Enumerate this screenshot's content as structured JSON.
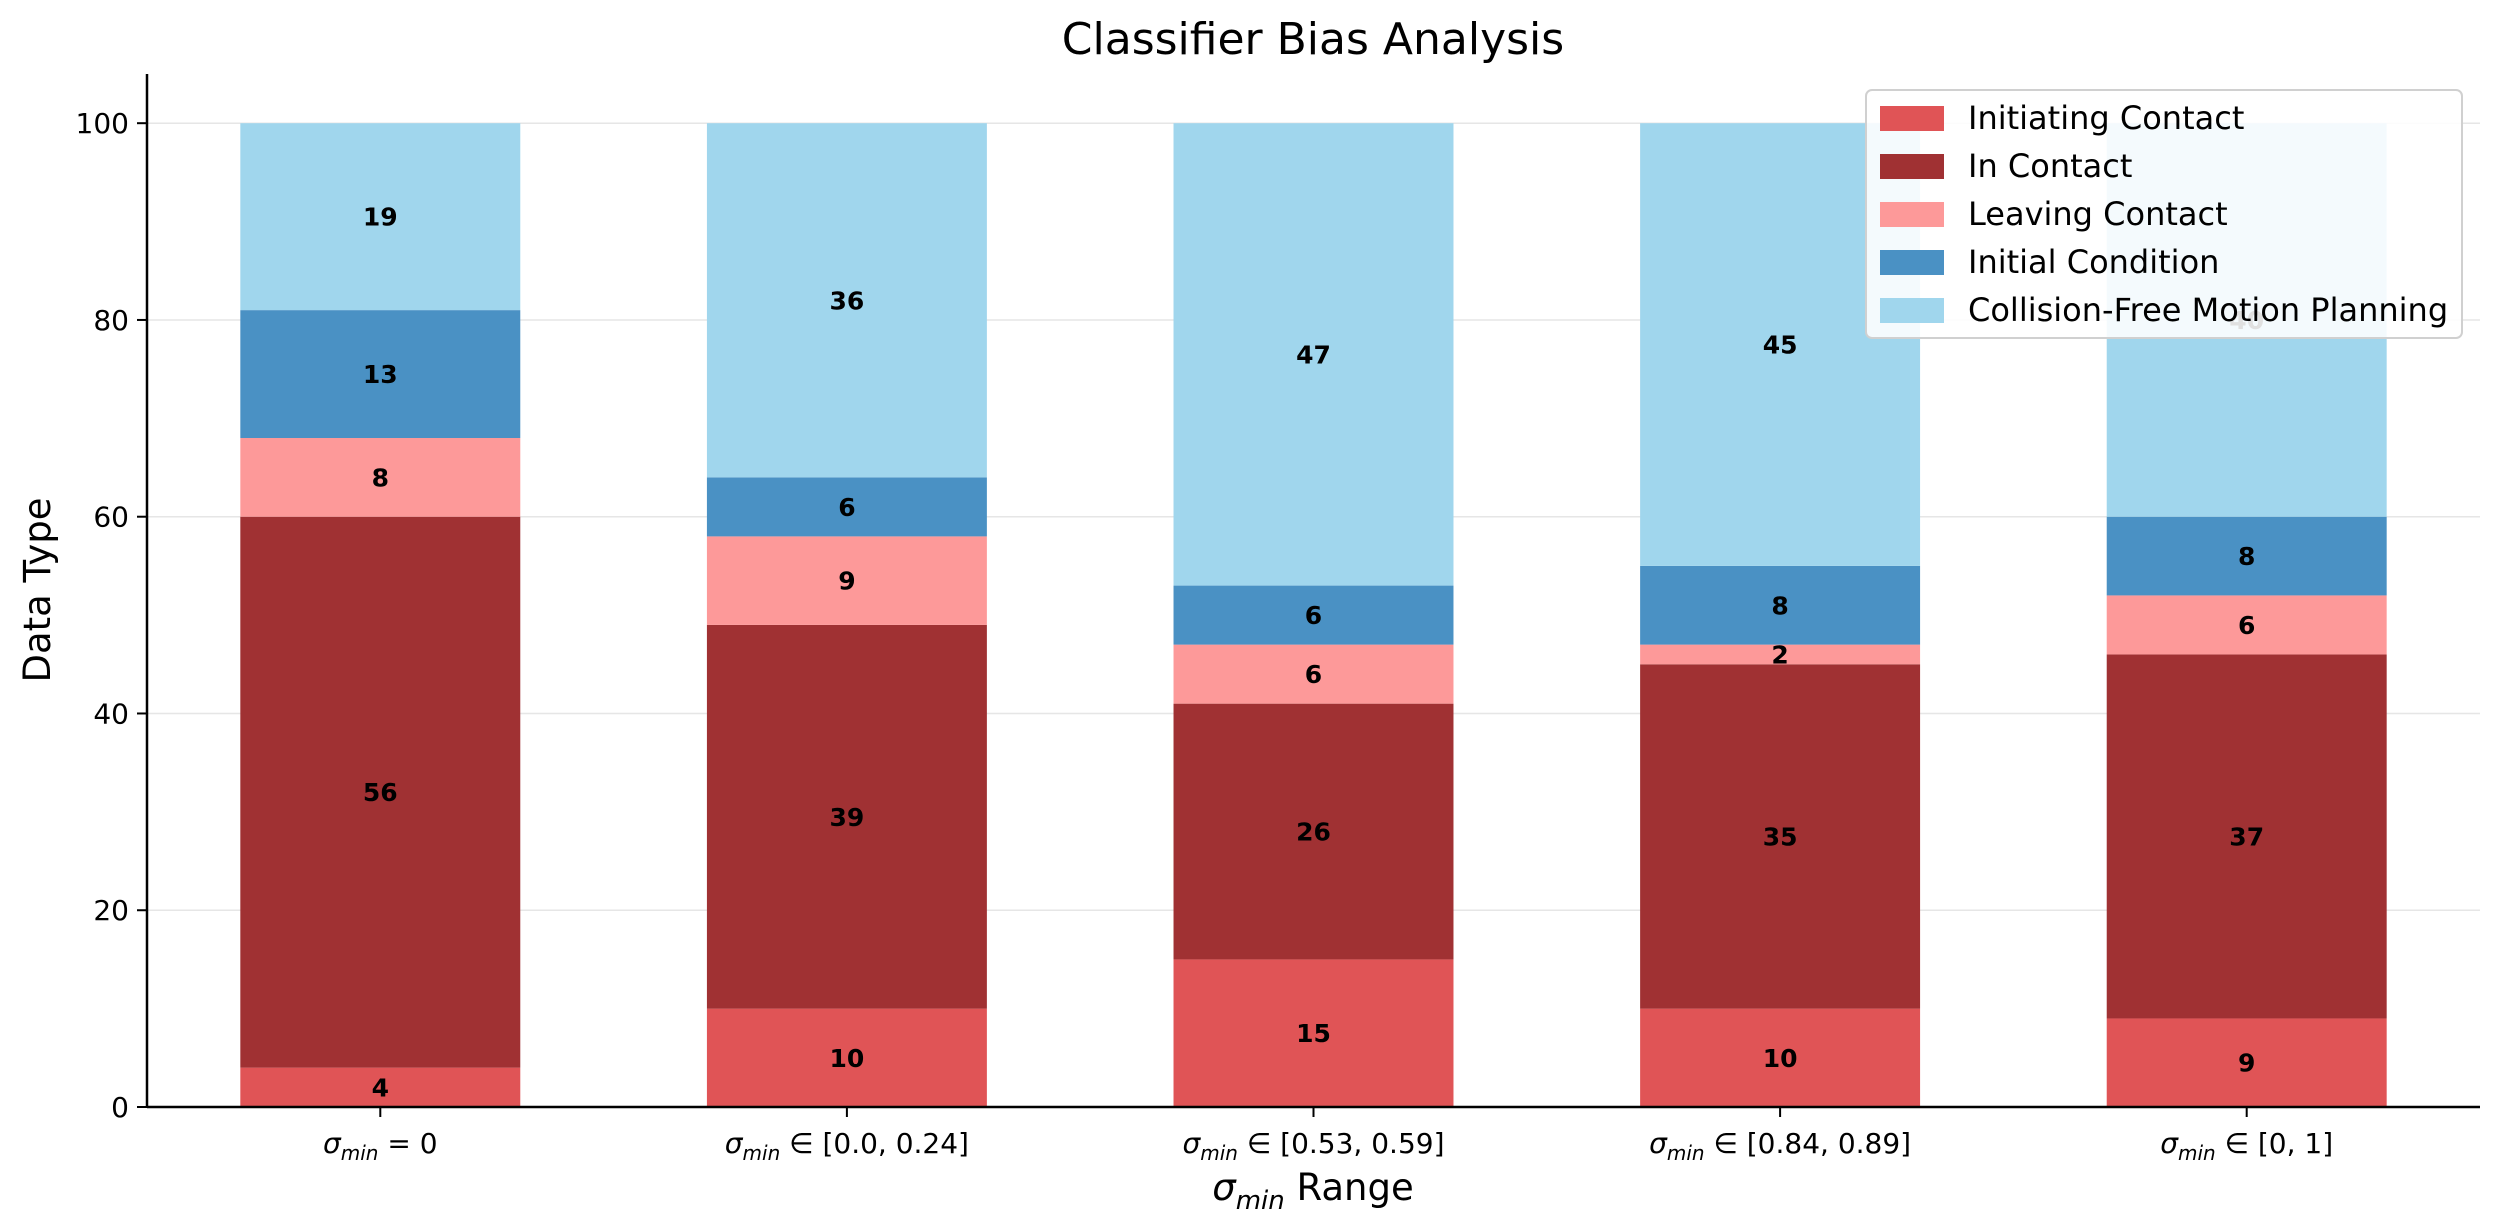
{
  "chart_data": {
    "type": "bar",
    "stacked": true,
    "title": "Classifier Bias Analysis",
    "xlabel": {
      "symbol": "σ",
      "sub": "min",
      "text": " Range"
    },
    "ylabel": "Data Type",
    "ylim": [
      0,
      105
    ],
    "yticks": [
      0,
      20,
      40,
      60,
      80,
      100
    ],
    "grid": "horizontal",
    "legend_position": "top-right",
    "categories": [
      {
        "sym": "σ",
        "sub": "min",
        "rest": " = 0"
      },
      {
        "sym": "σ",
        "sub": "min",
        "rest": " ∈ [0.0, 0.24]"
      },
      {
        "sym": "σ",
        "sub": "min",
        "rest": " ∈ [0.53, 0.59]"
      },
      {
        "sym": "σ",
        "sub": "min",
        "rest": " ∈ [0.84, 0.89]"
      },
      {
        "sym": "σ",
        "sub": "min",
        "rest": " ∈ [0, 1]"
      }
    ],
    "series": [
      {
        "name": "Initiating Contact",
        "color": "#e05456",
        "values": [
          4,
          10,
          15,
          10,
          9
        ]
      },
      {
        "name": "In Contact",
        "color": "#a03133",
        "values": [
          56,
          39,
          26,
          35,
          37
        ]
      },
      {
        "name": "Leaving Contact",
        "color": "#fd9999",
        "values": [
          8,
          9,
          6,
          2,
          6
        ]
      },
      {
        "name": "Initial Condition",
        "color": "#4a91c4",
        "values": [
          13,
          6,
          6,
          8,
          8
        ]
      },
      {
        "name": "Collision-Free Motion Planning",
        "color": "#a0d6ed",
        "values": [
          19,
          36,
          47,
          45,
          40
        ]
      }
    ]
  }
}
